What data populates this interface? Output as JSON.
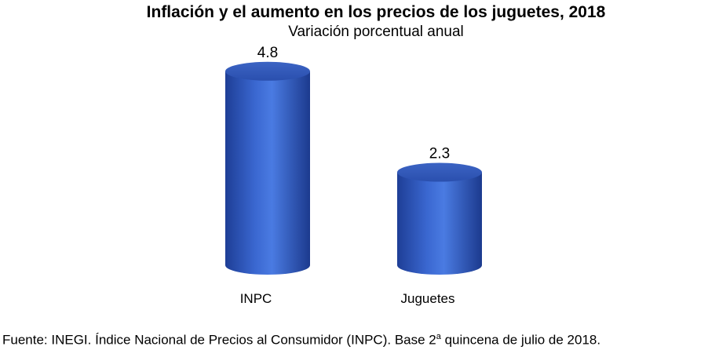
{
  "chart_data": {
    "type": "bar",
    "title": "Inflación y el aumento en los precios de los juguetes, 2018",
    "subtitle": "Variación porcentual anual",
    "categories": [
      "INPC",
      "Juguetes"
    ],
    "values": [
      4.8,
      2.3
    ],
    "data_labels": [
      "4.8",
      "2.3"
    ],
    "bar_style": "cylinder",
    "bar_color": "#3F6FD8",
    "grid": false,
    "legend": "none"
  },
  "source": {
    "prefix": "Fuente: INEGI. Índice Nacional de Precios al Consumidor (INPC). Base 2",
    "superscript": "a",
    "suffix": " quincena de julio de 2018."
  }
}
